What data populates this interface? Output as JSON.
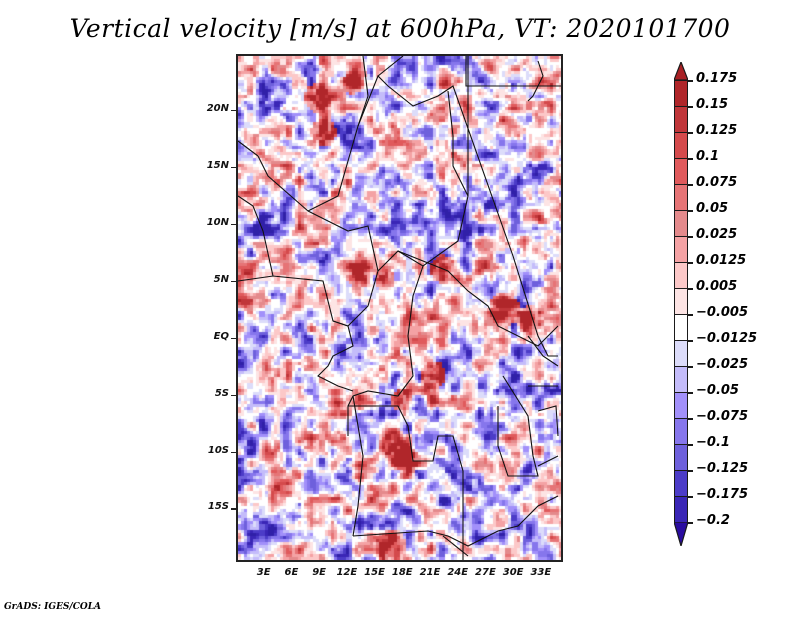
{
  "title": "Vertical velocity [m/s] at 600hPa, VT: 2020101700",
  "credit": "GrADS: IGES/COLA",
  "map": {
    "projection": "latlon",
    "lon_range": [
      0,
      35.4
    ],
    "lat_range": [
      -19.7,
      24.9
    ],
    "variable": "vertical velocity",
    "units": "m/s",
    "level": "600hPa",
    "valid_time": "2020101700",
    "lat_ticks": [
      {
        "value": 20,
        "label": "20N"
      },
      {
        "value": 15,
        "label": "15N"
      },
      {
        "value": 10,
        "label": "10N"
      },
      {
        "value": 5,
        "label": "5N"
      },
      {
        "value": 0,
        "label": "EQ"
      },
      {
        "value": -5,
        "label": "5S"
      },
      {
        "value": -10,
        "label": "10S"
      },
      {
        "value": -15,
        "label": "15S"
      }
    ],
    "lon_ticks": [
      {
        "value": 3,
        "label": "3E"
      },
      {
        "value": 6,
        "label": "6E"
      },
      {
        "value": 9,
        "label": "9E"
      },
      {
        "value": 12,
        "label": "12E"
      },
      {
        "value": 15,
        "label": "15E"
      },
      {
        "value": 18,
        "label": "18E"
      },
      {
        "value": 21,
        "label": "21E"
      },
      {
        "value": 24,
        "label": "24E"
      },
      {
        "value": 27,
        "label": "27E"
      },
      {
        "value": 30,
        "label": "30E"
      },
      {
        "value": 33,
        "label": "33E"
      }
    ]
  },
  "colorbar": {
    "levels": [
      {
        "label": "0.175",
        "color": "#b0262a"
      },
      {
        "label": "0.15",
        "color": "#c0363a"
      },
      {
        "label": "0.125",
        "color": "#d44a4c"
      },
      {
        "label": "0.1",
        "color": "#e05a5c"
      },
      {
        "label": "0.075",
        "color": "#e67476"
      },
      {
        "label": "0.05",
        "color": "#e48a8c"
      },
      {
        "label": "0.025",
        "color": "#f4a2a4"
      },
      {
        "label": "0.0125",
        "color": "#fcc8c8"
      },
      {
        "label": "0.005",
        "color": "#fde4e4"
      },
      {
        "label": "-0.005",
        "color": "#ffffff"
      },
      {
        "label": "-0.0125",
        "color": "#dcdcfa"
      },
      {
        "label": "-0.025",
        "color": "#c4bcfa"
      },
      {
        "label": "-0.05",
        "color": "#a290fa"
      },
      {
        "label": "-0.075",
        "color": "#8676ec"
      },
      {
        "label": "-0.1",
        "color": "#6e60dc"
      },
      {
        "label": "-0.125",
        "color": "#4c3cc8"
      },
      {
        "label": "-0.175",
        "color": "#3a26b6"
      },
      {
        "label": "-0.2",
        "color": "#3020a8"
      }
    ],
    "top_arrow_color": "#a82024",
    "bottom_arrow_color": "#2a0ca0"
  }
}
